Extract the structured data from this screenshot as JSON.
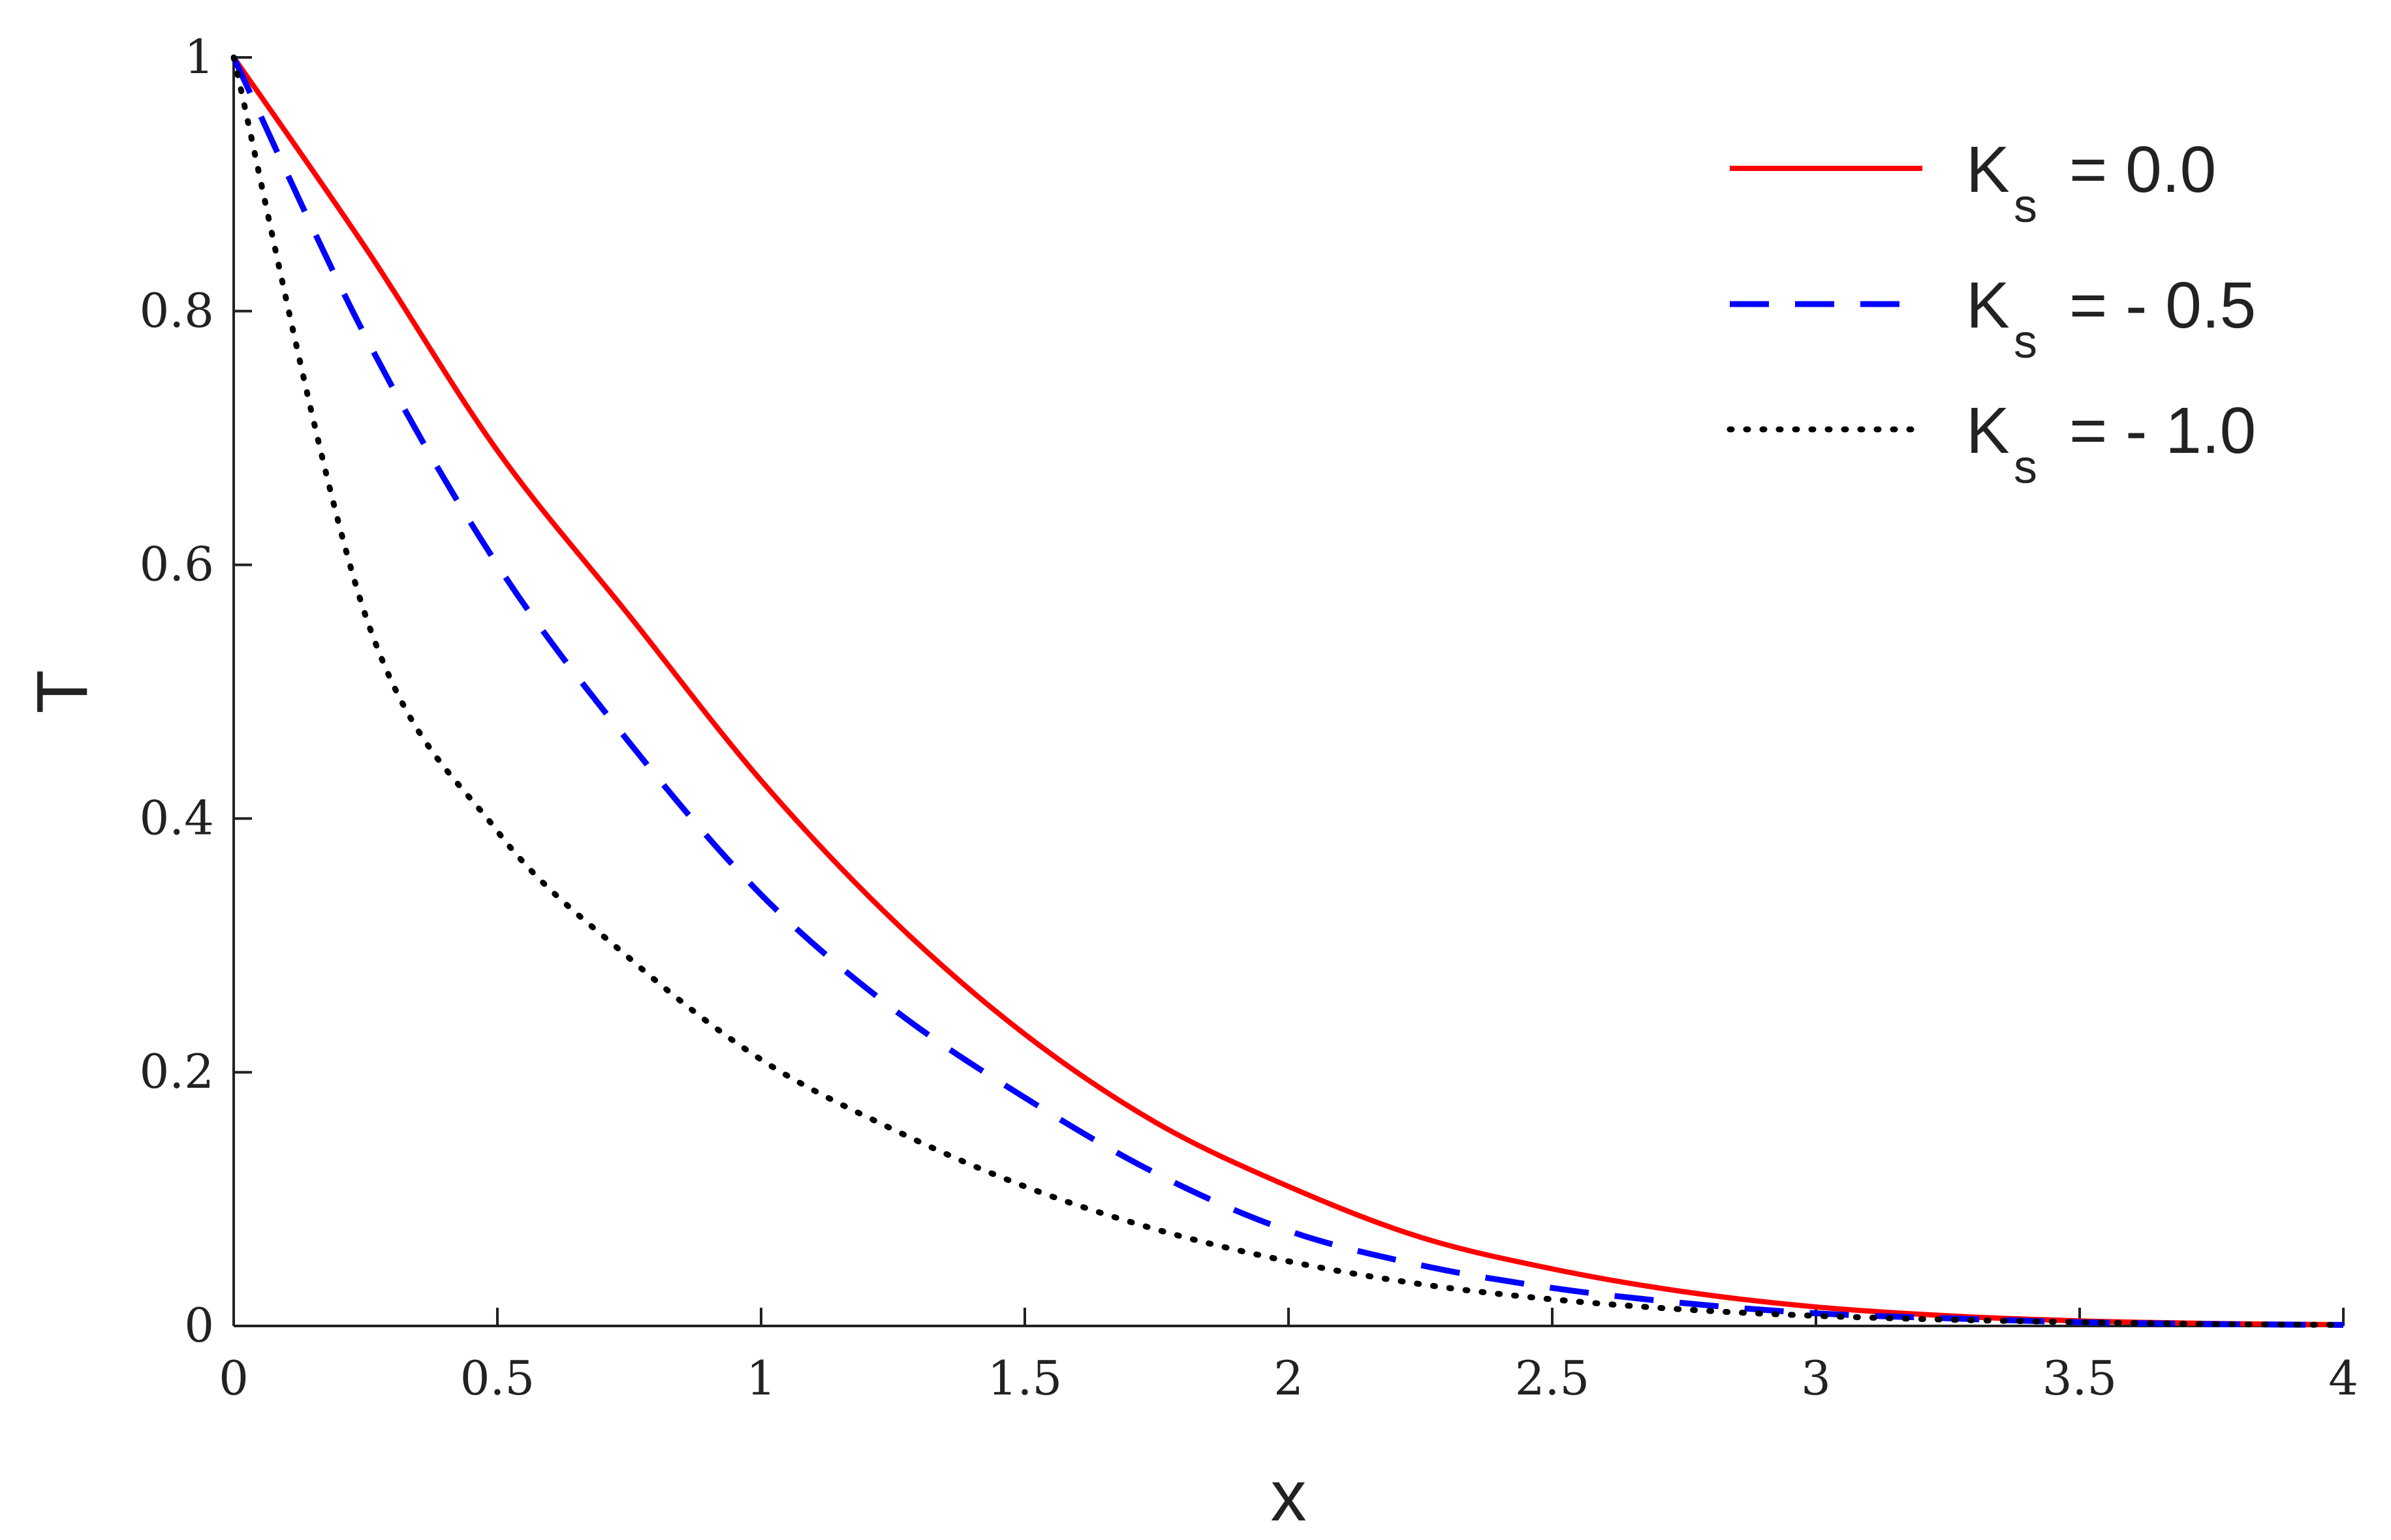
{
  "chart_data": {
    "type": "line",
    "title": "",
    "xlabel": "x",
    "ylabel": "T",
    "xlim": [
      0,
      4
    ],
    "ylim": [
      0,
      1
    ],
    "grid": false,
    "legend_position": "top-right",
    "x_ticks": [
      "0",
      "0.5",
      "1",
      "1.5",
      "2",
      "2.5",
      "3",
      "3.5",
      "4"
    ],
    "y_ticks": [
      "0",
      "0.2",
      "0.4",
      "0.6",
      "0.8",
      "1"
    ],
    "x": [
      0,
      0.25,
      0.5,
      0.75,
      1,
      1.25,
      1.5,
      1.75,
      2,
      2.25,
      2.5,
      2.75,
      3,
      3.25,
      3.5,
      3.75,
      4
    ],
    "series": [
      {
        "name": "K_s = 0.0",
        "legend_main": "K",
        "legend_sub": "s",
        "legend_value": "=  0.0",
        "color": "#ff0000",
        "style": "solid",
        "values": [
          1.0,
          0.85,
          0.69,
          0.56,
          0.43,
          0.32,
          0.23,
          0.16,
          0.11,
          0.07,
          0.045,
          0.027,
          0.015,
          0.008,
          0.004,
          0.002,
          0.001
        ]
      },
      {
        "name": "K_s = - 0.5",
        "legend_main": "K",
        "legend_sub": "s",
        "legend_value": "= - 0.5",
        "color": "#0000ff",
        "style": "dashed",
        "values": [
          1.0,
          0.78,
          0.6,
          0.46,
          0.34,
          0.25,
          0.18,
          0.12,
          0.075,
          0.048,
          0.03,
          0.018,
          0.01,
          0.006,
          0.003,
          0.0015,
          0.0008
        ]
      },
      {
        "name": "K_s = - 1.0",
        "legend_main": "K",
        "legend_sub": "s",
        "legend_value": "= - 1.0",
        "color": "#000000",
        "style": "dotted",
        "values": [
          1.0,
          0.56,
          0.39,
          0.29,
          0.21,
          0.155,
          0.11,
          0.076,
          0.051,
          0.033,
          0.021,
          0.013,
          0.008,
          0.005,
          0.003,
          0.0015,
          0.0008
        ]
      }
    ]
  }
}
